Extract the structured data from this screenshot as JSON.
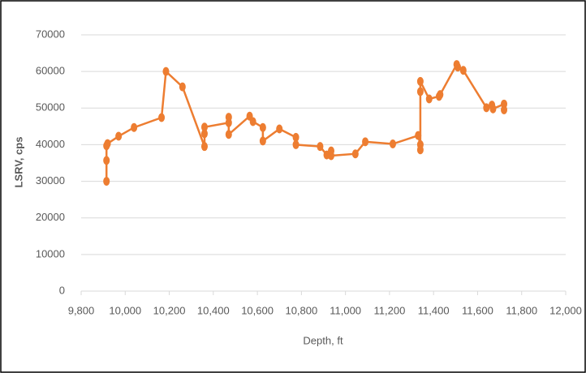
{
  "chart_data": {
    "type": "line",
    "x": [
      9915,
      9915,
      9915,
      9920,
      9970,
      10040,
      10165,
      10185,
      10260,
      10360,
      10360,
      10360,
      10470,
      10470,
      10470,
      10565,
      10580,
      10625,
      10625,
      10700,
      10775,
      10775,
      10885,
      10915,
      10935,
      10935,
      11045,
      11090,
      11215,
      11330,
      11340,
      11340,
      11340,
      11340,
      11380,
      11425,
      11430,
      11505,
      11510,
      11535,
      11640,
      11665,
      11670,
      11720,
      11720
    ],
    "series": [
      {
        "name": "LSRV",
        "color": "#ed7d31",
        "values": [
          30000,
          35700,
          39700,
          40300,
          42300,
          44700,
          47400,
          60000,
          55800,
          39500,
          43000,
          44800,
          46000,
          47500,
          42800,
          47800,
          46300,
          44700,
          41000,
          44300,
          42000,
          40000,
          39500,
          37200,
          38300,
          37000,
          37500,
          40800,
          40200,
          42500,
          40000,
          38600,
          54500,
          57300,
          52500,
          53200,
          53700,
          61900,
          61200,
          60300,
          50100,
          50800,
          49800,
          51100,
          49500
        ]
      }
    ],
    "xlabel": "Depth, ft",
    "ylabel": "LSRV, cps",
    "xlim": [
      9800,
      12000
    ],
    "xticks": [
      {
        "value": 9800,
        "label": "9,800"
      },
      {
        "value": 10000,
        "label": "10,000"
      },
      {
        "value": 10200,
        "label": "10,200"
      },
      {
        "value": 10400,
        "label": "10,400"
      },
      {
        "value": 10600,
        "label": "10,600"
      },
      {
        "value": 10800,
        "label": "10,800"
      },
      {
        "value": 11000,
        "label": "11,000"
      },
      {
        "value": 11200,
        "label": "11,200"
      },
      {
        "value": 11400,
        "label": "11,400"
      },
      {
        "value": 11600,
        "label": "11,600"
      },
      {
        "value": 11800,
        "label": "11,800"
      },
      {
        "value": 12000,
        "label": "12,000"
      }
    ],
    "ylim": [
      0,
      70000
    ],
    "yticks": [
      0,
      10000,
      20000,
      30000,
      40000,
      50000,
      60000,
      70000
    ],
    "grid": true
  }
}
